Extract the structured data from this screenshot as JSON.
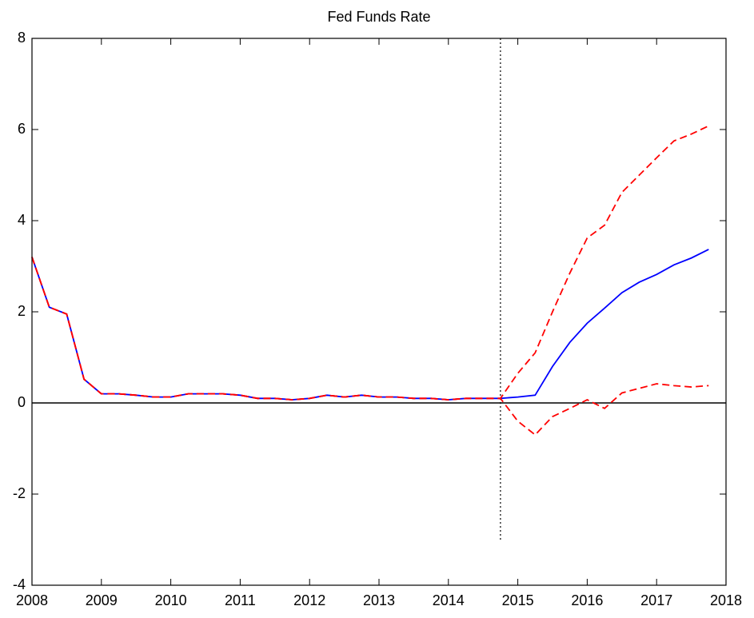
{
  "chart_data": {
    "type": "line",
    "title": "Fed Funds Rate",
    "x": [
      2008,
      2008.25,
      2008.5,
      2008.75,
      2009,
      2009.25,
      2009.5,
      2009.75,
      2010,
      2010.25,
      2010.5,
      2010.75,
      2011,
      2011.25,
      2011.5,
      2011.75,
      2012,
      2012.25,
      2012.5,
      2012.75,
      2013,
      2013.25,
      2013.5,
      2013.75,
      2014,
      2014.25,
      2014.5,
      2014.75,
      2015,
      2015.25,
      2015.5,
      2015.75,
      2016,
      2016.25,
      2016.5,
      2016.75,
      2017,
      2017.25,
      2017.5,
      2017.75
    ],
    "series": [
      {
        "color": "#0000ff",
        "line_style": "solid",
        "values": [
          3.2,
          2.1,
          1.95,
          0.52,
          0.2,
          0.2,
          0.17,
          0.13,
          0.13,
          0.2,
          0.2,
          0.2,
          0.17,
          0.1,
          0.1,
          0.07,
          0.1,
          0.17,
          0.13,
          0.17,
          0.13,
          0.13,
          0.1,
          0.1,
          0.07,
          0.1,
          0.1,
          0.1,
          0.13,
          0.17,
          0.8,
          1.33,
          1.75,
          2.08,
          2.42,
          2.65,
          2.82,
          3.03,
          3.18,
          3.37
        ]
      },
      {
        "color": "#ff0000",
        "line_style": "dashed",
        "values": [
          3.2,
          2.1,
          1.95,
          0.52,
          0.2,
          0.2,
          0.17,
          0.13,
          0.13,
          0.2,
          0.2,
          0.2,
          0.17,
          0.1,
          0.1,
          0.07,
          0.1,
          0.17,
          0.13,
          0.17,
          0.13,
          0.13,
          0.1,
          0.1,
          0.07,
          0.1,
          0.1,
          0.1,
          0.65,
          1.1,
          2.0,
          2.85,
          3.62,
          3.9,
          4.62,
          5.0,
          5.38,
          5.75,
          5.9,
          6.08
        ]
      },
      {
        "color": "#ff0000",
        "line_style": "dashed",
        "values": [
          3.2,
          2.1,
          1.95,
          0.52,
          0.2,
          0.2,
          0.17,
          0.13,
          0.13,
          0.2,
          0.2,
          0.2,
          0.17,
          0.1,
          0.1,
          0.07,
          0.1,
          0.17,
          0.13,
          0.17,
          0.13,
          0.13,
          0.1,
          0.1,
          0.07,
          0.1,
          0.1,
          0.1,
          -0.4,
          -0.7,
          -0.3,
          -0.12,
          0.07,
          -0.12,
          0.22,
          0.32,
          0.42,
          0.38,
          0.35,
          0.38
        ]
      }
    ],
    "hline": 0,
    "vline": {
      "x": 2014.75,
      "y": [
        -3,
        8
      ]
    },
    "xlim": [
      2008,
      2018
    ],
    "xticks": [
      2008,
      2009,
      2010,
      2011,
      2012,
      2013,
      2014,
      2015,
      2016,
      2017,
      2018
    ],
    "ylim": [
      -4,
      8
    ],
    "yticks": [
      -4,
      -2,
      0,
      2,
      4,
      6,
      8
    ],
    "grid": false
  }
}
